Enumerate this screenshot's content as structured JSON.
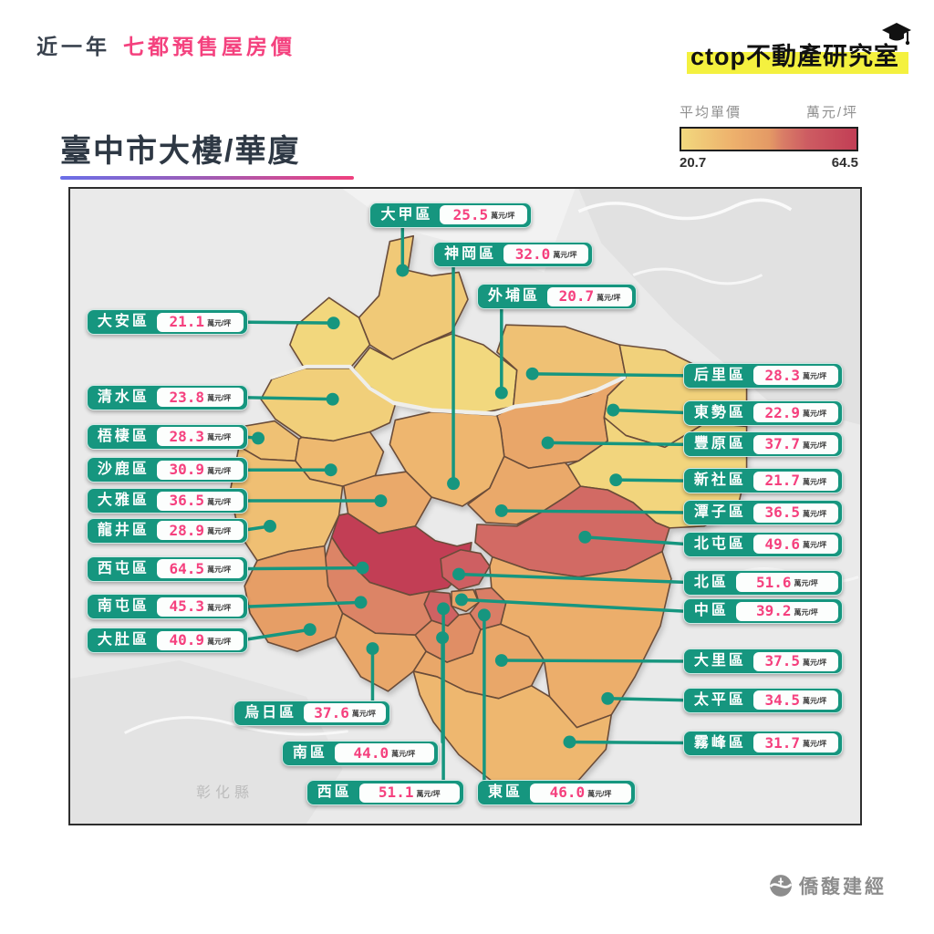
{
  "header": {
    "period": "近一年",
    "series_title": "七都預售屋房價",
    "lab_name": "ctop不動產研究室"
  },
  "title": {
    "city": "臺中市",
    "building_type": "大樓/華廈"
  },
  "legend": {
    "title": "平均單價",
    "unit": "萬元/坪",
    "min": "20.7",
    "max": "64.5",
    "ramp": [
      {
        "t": 0.0,
        "c": "#f2d87e"
      },
      {
        "t": 0.3,
        "c": "#edb06c"
      },
      {
        "t": 0.5,
        "c": "#e49a65"
      },
      {
        "t": 0.58,
        "c": "#d97d66"
      },
      {
        "t": 0.72,
        "c": "#cd5c62"
      },
      {
        "t": 1.0,
        "c": "#c23e55"
      }
    ]
  },
  "colors": {
    "teal": "#16967f",
    "pink": "#f5407e",
    "highlight_yellow": "#f4f13f"
  },
  "map": {
    "neighbor_county": "彰化縣"
  },
  "footer": {
    "brand": "僑馥建經"
  },
  "chart_data": {
    "type": "choropleth-map",
    "title": "臺中市大樓/華廈",
    "subtitle": "近一年 七都預售屋房價",
    "value_label": "平均單價",
    "unit": "萬元/坪",
    "min": 20.7,
    "max": 64.5,
    "districts": [
      {
        "name": "大甲區",
        "value": 25.5,
        "text": "25.5"
      },
      {
        "name": "神岡區",
        "value": 32.0,
        "text": "32.0"
      },
      {
        "name": "外埔區",
        "value": 20.7,
        "text": "20.7"
      },
      {
        "name": "大安區",
        "value": 21.1,
        "text": "21.1"
      },
      {
        "name": "清水區",
        "value": 23.8,
        "text": "23.8"
      },
      {
        "name": "梧棲區",
        "value": 28.3,
        "text": "28.3"
      },
      {
        "name": "沙鹿區",
        "value": 30.9,
        "text": "30.9"
      },
      {
        "name": "大雅區",
        "value": 36.5,
        "text": "36.5"
      },
      {
        "name": "龍井區",
        "value": 28.9,
        "text": "28.9"
      },
      {
        "name": "西屯區",
        "value": 64.5,
        "text": "64.5"
      },
      {
        "name": "南屯區",
        "value": 45.3,
        "text": "45.3"
      },
      {
        "name": "大肚區",
        "value": 40.9,
        "text": "40.9"
      },
      {
        "name": "烏日區",
        "value": 37.6,
        "text": "37.6"
      },
      {
        "name": "南區",
        "value": 44.0,
        "text": "44.0"
      },
      {
        "name": "西區",
        "value": 51.1,
        "text": "51.1"
      },
      {
        "name": "東區",
        "value": 46.0,
        "text": "46.0"
      },
      {
        "name": "后里區",
        "value": 28.3,
        "text": "28.3"
      },
      {
        "name": "東勢區",
        "value": 22.9,
        "text": "22.9"
      },
      {
        "name": "豐原區",
        "value": 37.7,
        "text": "37.7"
      },
      {
        "name": "新社區",
        "value": 21.7,
        "text": "21.7"
      },
      {
        "name": "潭子區",
        "value": 36.5,
        "text": "36.5"
      },
      {
        "name": "北屯區",
        "value": 49.6,
        "text": "49.6"
      },
      {
        "name": "北區",
        "value": 51.6,
        "text": "51.6"
      },
      {
        "name": "中區",
        "value": 39.2,
        "text": "39.2"
      },
      {
        "name": "大里區",
        "value": 37.5,
        "text": "37.5"
      },
      {
        "name": "太平區",
        "value": 34.5,
        "text": "34.5"
      },
      {
        "name": "霧峰區",
        "value": 31.7,
        "text": "31.7"
      }
    ]
  }
}
